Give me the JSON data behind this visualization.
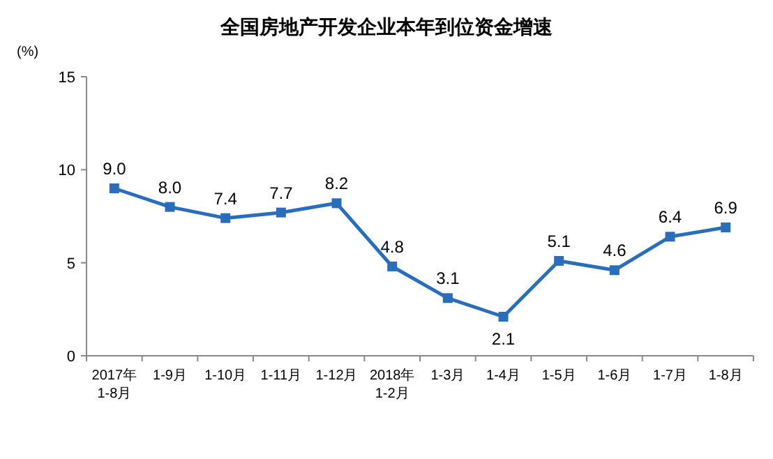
{
  "chart_data": {
    "type": "line",
    "title": "全国房地产开发企业本年到位资金增速",
    "ylabel": "(%)",
    "categories": [
      "2017年\n1-8月",
      "1-9月",
      "1-10月",
      "1-11月",
      "1-12月",
      "2018年\n1-2月",
      "1-3月",
      "1-4月",
      "1-5月",
      "1-6月",
      "1-7月",
      "1-8月"
    ],
    "series": [
      {
        "color": "#2a6ebb",
        "values": [
          9.0,
          8.0,
          7.4,
          7.7,
          8.2,
          4.8,
          3.1,
          2.1,
          5.1,
          4.6,
          6.4,
          6.9
        ],
        "value_labels": [
          "9.0",
          "8.0",
          "7.4",
          "7.7",
          "8.2",
          "4.8",
          "3.1",
          "2.1",
          "5.1",
          "4.6",
          "6.4",
          "6.9"
        ]
      }
    ],
    "ylim": [
      0,
      15
    ],
    "yticks": [
      0,
      5,
      10,
      15
    ],
    "grid": false,
    "marker": "square",
    "line_style": "solid"
  }
}
